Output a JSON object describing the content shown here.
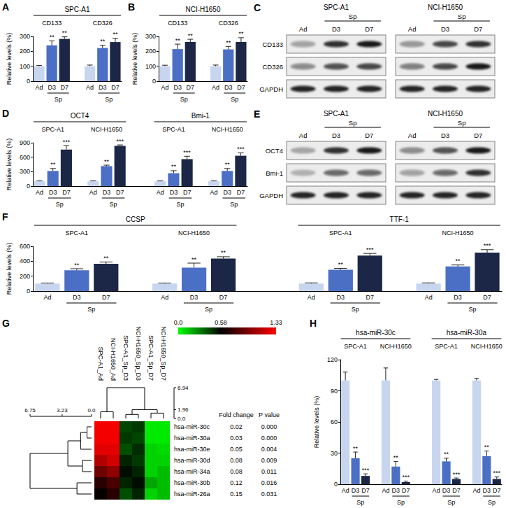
{
  "chart_data": [
    {
      "label": "A",
      "type": "bar",
      "title": "SPC-A1",
      "ylabel": "Relative levels (%)",
      "ylim": [
        0,
        300
      ],
      "yticks": [
        0,
        100,
        200,
        300
      ],
      "grid": false,
      "categories": [
        "Ad",
        "D3",
        "D7"
      ],
      "sublabel": {
        "text": "Sp",
        "categories": [
          "D3",
          "D7"
        ]
      },
      "colors": [
        "#c8d5ef",
        "#4b6fc4",
        "#1c2646"
      ],
      "groups": [
        {
          "name": "CD133",
          "values": [
            100,
            240,
            283
          ],
          "errors": [
            6,
            30,
            14
          ],
          "significance": [
            null,
            "**",
            "**"
          ]
        },
        {
          "name": "CD326",
          "values": [
            100,
            222,
            262
          ],
          "errors": [
            8,
            18,
            25
          ],
          "significance": [
            null,
            "**",
            "**"
          ]
        }
      ]
    },
    {
      "label": "B",
      "type": "bar",
      "title": "NCI-H1650",
      "ylabel": "Relative levels (%)",
      "ylim": [
        0,
        300
      ],
      "yticks": [
        0,
        100,
        200,
        300
      ],
      "grid": false,
      "categories": [
        "Ad",
        "D3",
        "D7"
      ],
      "sublabel": {
        "text": "Sp",
        "categories": [
          "D3",
          "D7"
        ]
      },
      "colors": [
        "#c8d5ef",
        "#4b6fc4",
        "#1c2646"
      ],
      "groups": [
        {
          "name": "CD133",
          "values": [
            100,
            215,
            263
          ],
          "errors": [
            7,
            33,
            18
          ],
          "significance": [
            null,
            "**",
            "**"
          ]
        },
        {
          "name": "CD326",
          "values": [
            100,
            213,
            263
          ],
          "errors": [
            8,
            20,
            28
          ],
          "significance": [
            null,
            "**",
            "**"
          ]
        }
      ]
    },
    {
      "label": "C",
      "type": "western_blot",
      "lanes": [
        "Ad",
        "D3",
        "D7"
      ],
      "sublabel": {
        "text": "Sp",
        "categories": [
          "D3",
          "D7"
        ]
      },
      "rows": [
        "CD133",
        "CD326",
        "GAPDH"
      ],
      "groups": [
        {
          "name": "SPC-A1",
          "intensity": [
            [
              0.35,
              0.85,
              0.95
            ],
            [
              0.45,
              0.7,
              0.75
            ],
            [
              0.9,
              0.9,
              0.9
            ]
          ]
        },
        {
          "name": "NCI-H1650",
          "intensity": [
            [
              0.4,
              0.75,
              0.85
            ],
            [
              0.5,
              0.75,
              0.95
            ],
            [
              0.9,
              0.9,
              0.9
            ]
          ]
        }
      ]
    },
    {
      "label": "D",
      "type": "bar",
      "ylabel": "Relative levels (%)",
      "ylim": [
        0,
        900
      ],
      "yticks": [
        0,
        300,
        600,
        900
      ],
      "grid": false,
      "categories": [
        "Ad",
        "D3",
        "D7"
      ],
      "sublabel": {
        "text": "Sp",
        "categories": [
          "D3",
          "D7"
        ]
      },
      "colors": [
        "#c8d5ef",
        "#4b6fc4",
        "#1c2646"
      ],
      "groups": [
        {
          "name": "OCT4",
          "subgroups": [
            {
              "name": "SPC-A1",
              "values": [
                100,
                315,
                760
              ],
              "errors": [
                10,
                50,
                80
              ],
              "significance": [
                null,
                "**",
                "***"
              ]
            },
            {
              "name": "NCI-H1650",
              "values": [
                100,
                415,
                835
              ],
              "errors": [
                10,
                20,
                20
              ],
              "significance": [
                null,
                "**",
                "***"
              ]
            }
          ]
        },
        {
          "name": "Bmi-1",
          "subgroups": [
            {
              "name": "SPC-A1",
              "values": [
                100,
                270,
                560
              ],
              "errors": [
                10,
                50,
                60
              ],
              "significance": [
                null,
                "**",
                "***"
              ]
            },
            {
              "name": "NCI-H1650",
              "values": [
                100,
                315,
                630
              ],
              "errors": [
                10,
                50,
                60
              ],
              "significance": [
                null,
                "**",
                "***"
              ]
            }
          ]
        }
      ]
    },
    {
      "label": "E",
      "type": "western_blot",
      "lanes": [
        "Ad",
        "D3",
        "D7"
      ],
      "sublabel": {
        "text": "Sp",
        "categories": [
          "D3",
          "D7"
        ]
      },
      "rows": [
        "OCT4",
        "Bmi-1",
        "GAPDH"
      ],
      "groups": [
        {
          "name": "SPC-A1",
          "intensity": [
            [
              0.3,
              0.85,
              0.95
            ],
            [
              0.25,
              0.6,
              0.6
            ],
            [
              0.9,
              0.9,
              0.9
            ]
          ]
        },
        {
          "name": "NCI-H1650",
          "intensity": [
            [
              0.45,
              0.7,
              0.95
            ],
            [
              0.35,
              0.6,
              0.85
            ],
            [
              0.9,
              0.9,
              0.9
            ]
          ]
        }
      ]
    },
    {
      "label": "F",
      "type": "bar",
      "ylabel": "Relative levels (%)",
      "ylim": [
        0,
        600
      ],
      "yticks": [
        0,
        200,
        400,
        600
      ],
      "grid": false,
      "categories": [
        "Ad",
        "D3",
        "D7"
      ],
      "sublabel": {
        "text": "Sp",
        "categories": [
          "D3",
          "D7"
        ]
      },
      "colors": [
        "#c8d5ef",
        "#4b6fc4",
        "#1c2646"
      ],
      "groups": [
        {
          "name": "CCSP",
          "subgroups": [
            {
              "name": "SPC-A1",
              "values": [
                100,
                280,
                365
              ],
              "errors": [
                8,
                20,
                25
              ],
              "significance": [
                null,
                "**",
                "**"
              ]
            },
            {
              "name": "NCI-H1650",
              "values": [
                100,
                315,
                435
              ],
              "errors": [
                8,
                60,
                25
              ],
              "significance": [
                null,
                "**",
                "**"
              ]
            }
          ]
        },
        {
          "name": "TTF-1",
          "subgroups": [
            {
              "name": "SPC-A1",
              "values": [
                100,
                285,
                475
              ],
              "errors": [
                10,
                20,
                30
              ],
              "significance": [
                null,
                "**",
                "***"
              ]
            },
            {
              "name": "NCI-H1650",
              "values": [
                100,
                330,
                515
              ],
              "errors": [
                10,
                20,
                40
              ],
              "significance": [
                null,
                "**",
                "***"
              ]
            }
          ]
        }
      ]
    },
    {
      "label": "G",
      "type": "heatmap",
      "columns": [
        "SPC-A1_Ad",
        "NCI-H1650_Ad",
        "SPC-A1_Sp_D3",
        "NCI-H1650_Sp_D3",
        "SPC-A1_Sp_D7",
        "NCI-H1650_Sp_D7"
      ],
      "rows": [
        "hsa-miR-30c",
        "hsa-miR-30a",
        "hsa-miR-30e",
        "hsa-miR-30d",
        "hsa-miR-34a",
        "hsa-miR-30b",
        "hsa-miR-26a"
      ],
      "cells": [
        [
          1.3,
          1.3,
          0.42,
          0.45,
          0.05,
          0.05
        ],
        [
          1.3,
          1.3,
          0.45,
          0.42,
          0.05,
          0.05
        ],
        [
          1.25,
          1.25,
          0.4,
          0.48,
          0.1,
          0.08
        ],
        [
          1.1,
          1.2,
          0.5,
          0.45,
          0.1,
          0.1
        ],
        [
          0.9,
          1,
          0.55,
          0.5,
          0.1,
          0.15
        ],
        [
          0.7,
          0.8,
          0.5,
          0.55,
          0.2,
          0.15
        ],
        [
          0.6,
          0.7,
          0.4,
          0.5,
          0.1,
          0.15
        ]
      ],
      "fold_change_label": "Fold change",
      "fold_change": [
        0.02,
        0.03,
        0.05,
        0.08,
        0.08,
        0.12,
        0.15
      ],
      "p_value_label": "P value",
      "p_value": [
        {
          "value": 0,
          "label": "0.000"
        },
        {
          "value": 0,
          "label": "0.000"
        },
        0.004,
        0.009,
        0.011,
        0.016,
        0.031
      ],
      "colorbar": {
        "range": [
          0,
          1.33
        ],
        "ticks": [
          {
            "value": 0,
            "label": "0.0"
          },
          0.58,
          1.33
        ],
        "colors": [
          "#00ff00",
          "#000000",
          "#ff0000"
        ]
      },
      "column_dendrogram": {
        "scale": [
          0,
          6.94
        ],
        "ticks": [
          {
            "value": 0,
            "label": "0.0"
          },
          1.96,
          6.94
        ],
        "merges": [
          [
            0,
            1,
            1.5
          ],
          [
            2,
            3,
            0.9
          ],
          [
            4,
            5,
            1.2
          ],
          [
            7,
            8,
            1.96
          ],
          [
            6,
            9,
            6.94
          ]
        ]
      },
      "row_dendrogram": {
        "scale": [
          0,
          6.75
        ],
        "ticks": [
          {
            "value": 0,
            "label": "0.0"
          },
          3.23,
          6.75
        ],
        "merges": [
          [
            0,
            1,
            0.5
          ],
          [
            7,
            2,
            1.2
          ],
          [
            3,
            4,
            1
          ],
          [
            8,
            9,
            2.6
          ],
          [
            5,
            6,
            1.6
          ],
          [
            10,
            11,
            6.75
          ]
        ]
      }
    },
    {
      "label": "H",
      "type": "bar",
      "ylabel": "Relative levels (%)",
      "ylim": [
        0,
        120
      ],
      "yticks": [
        0,
        30,
        60,
        90,
        120
      ],
      "grid": false,
      "categories": [
        "Ad",
        "D3",
        "D7"
      ],
      "sublabel": {
        "text": "Sp",
        "categories": [
          "D3",
          "D7"
        ]
      },
      "colors": [
        "#c8d5ef",
        "#4b6fc4",
        "#1c2646"
      ],
      "groups": [
        {
          "name": "hsa-miR-30c",
          "subgroups": [
            {
              "name": "SPC-A1",
              "values": [
                100,
                25,
                8
              ],
              "errors": [
                8,
                6,
                2
              ],
              "significance": [
                null,
                "**",
                "***"
              ]
            },
            {
              "name": "NCI-H1650",
              "values": [
                100,
                17,
                2
              ],
              "errors": [
                12,
                5,
                1
              ],
              "significance": [
                null,
                "**",
                "***"
              ]
            }
          ]
        },
        {
          "name": "hsa-miR-30a",
          "subgroups": [
            {
              "name": "SPC-A1",
              "values": [
                100,
                22,
                5
              ],
              "errors": [
                1,
                3,
                1
              ],
              "significance": [
                null,
                "**",
                "***"
              ]
            },
            {
              "name": "NCI-H1650",
              "values": [
                100,
                27,
                5
              ],
              "errors": [
                2,
                5,
                2
              ],
              "significance": [
                null,
                "**",
                "***"
              ]
            }
          ]
        }
      ]
    }
  ]
}
